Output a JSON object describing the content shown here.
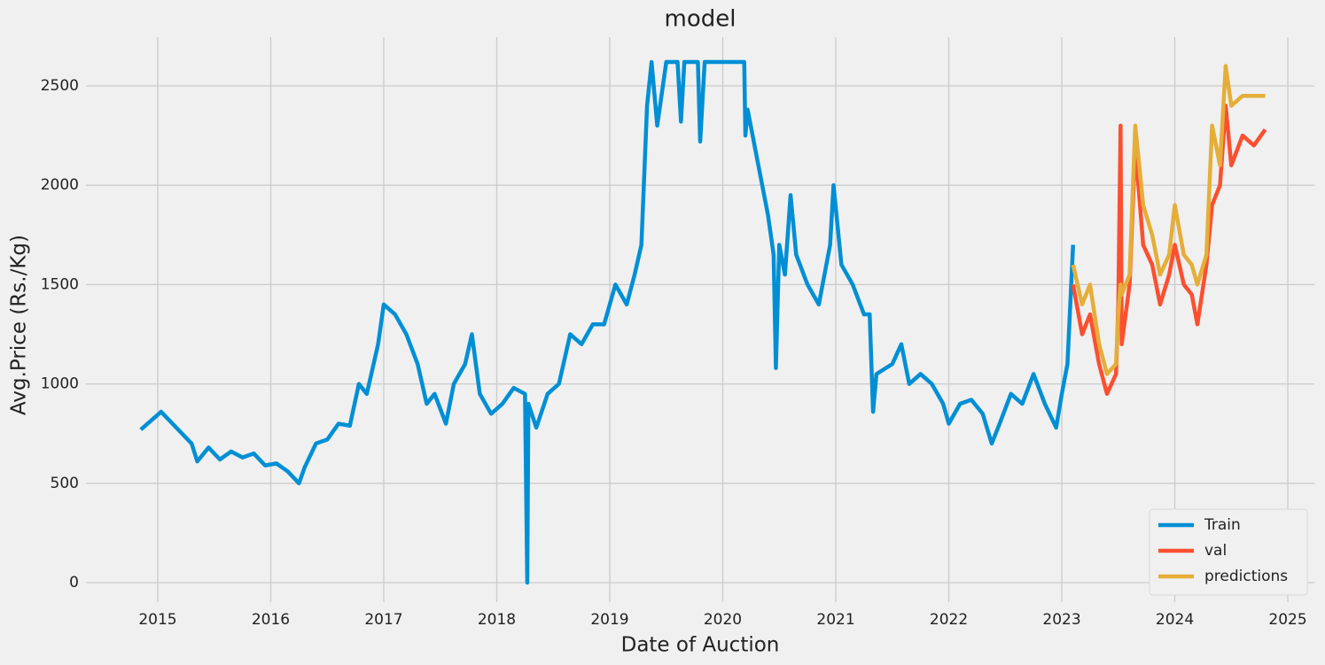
{
  "chart_data": {
    "type": "line",
    "title": "model",
    "x_label": "Date of Auction",
    "y_label": "Avg.Price (Rs./Kg)",
    "xlim": [
      2014.365,
      2025.235
    ],
    "xticks": [
      2015,
      2016,
      2017,
      2018,
      2019,
      2020,
      2021,
      2022,
      2023,
      2024,
      2025
    ],
    "ylim": [
      -98,
      2745
    ],
    "yticks": [
      0,
      500,
      1000,
      1500,
      2000,
      2500
    ],
    "grid": true,
    "legend": "lower right",
    "series": [
      {
        "name": "Train",
        "color": "#008fd5",
        "x": [
          2014.85,
          2015.03,
          2015.3,
          2015.35,
          2015.45,
          2015.55,
          2015.65,
          2015.75,
          2015.85,
          2015.95,
          2016.05,
          2016.15,
          2016.25,
          2016.3,
          2016.4,
          2016.5,
          2016.6,
          2016.7,
          2016.78,
          2016.85,
          2016.95,
          2017.0,
          2017.1,
          2017.2,
          2017.3,
          2017.38,
          2017.45,
          2017.55,
          2017.62,
          2017.72,
          2017.78,
          2017.85,
          2017.95,
          2018.05,
          2018.15,
          2018.25,
          2018.27,
          2018.28,
          2018.35,
          2018.45,
          2018.55,
          2018.65,
          2018.75,
          2018.85,
          2018.95,
          2019.05,
          2019.15,
          2019.22,
          2019.28,
          2019.33,
          2019.37,
          2019.42,
          2019.5,
          2019.6,
          2019.63,
          2019.66,
          2019.78,
          2019.8,
          2019.84,
          2019.95,
          2020.1,
          2020.19,
          2020.2,
          2020.22,
          2020.4,
          2020.45,
          2020.47,
          2020.5,
          2020.55,
          2020.6,
          2020.65,
          2020.75,
          2020.85,
          2020.95,
          2020.98,
          2021.05,
          2021.15,
          2021.25,
          2021.3,
          2021.33,
          2021.36,
          2021.5,
          2021.58,
          2021.65,
          2021.75,
          2021.85,
          2021.95,
          2022.0,
          2022.1,
          2022.2,
          2022.3,
          2022.38,
          2022.45,
          2022.55,
          2022.65,
          2022.75,
          2022.85,
          2022.95,
          2023.0,
          2023.05,
          2023.1
        ],
        "values": [
          770,
          860,
          700,
          610,
          680,
          620,
          660,
          630,
          650,
          590,
          600,
          560,
          500,
          580,
          700,
          720,
          800,
          790,
          1000,
          950,
          1200,
          1400,
          1350,
          1250,
          1100,
          900,
          950,
          800,
          1000,
          1100,
          1250,
          950,
          850,
          900,
          980,
          950,
          0,
          900,
          780,
          950,
          1000,
          1250,
          1200,
          1300,
          1300,
          1500,
          1400,
          1550,
          1700,
          2400,
          2620,
          2300,
          2620,
          2620,
          2320,
          2620,
          2620,
          2220,
          2620,
          2620,
          2620,
          2620,
          2250,
          2380,
          1850,
          1650,
          1080,
          1700,
          1550,
          1950,
          1650,
          1500,
          1400,
          1700,
          2000,
          1600,
          1500,
          1350,
          1350,
          860,
          1050,
          1100,
          1200,
          1000,
          1050,
          1000,
          900,
          800,
          900,
          920,
          850,
          700,
          800,
          950,
          900,
          1050,
          900,
          780,
          950,
          1100,
          1700
        ]
      },
      {
        "name": "val",
        "color": "#fc4f30",
        "x": [
          2023.1,
          2023.18,
          2023.25,
          2023.33,
          2023.4,
          2023.48,
          2023.5,
          2023.52,
          2023.53,
          2023.6,
          2023.65,
          2023.72,
          2023.8,
          2023.87,
          2023.95,
          2024.0,
          2024.08,
          2024.15,
          2024.2,
          2024.28,
          2024.33,
          2024.4,
          2024.45,
          2024.5,
          2024.6,
          2024.7,
          2024.8
        ],
        "values": [
          1500,
          1250,
          1350,
          1100,
          950,
          1050,
          1400,
          2300,
          1200,
          1500,
          2200,
          1700,
          1600,
          1400,
          1550,
          1700,
          1500,
          1450,
          1300,
          1600,
          1900,
          2000,
          2400,
          2100,
          2250,
          2200,
          2280
        ]
      },
      {
        "name": "predictions",
        "color": "#e5ae38",
        "x": [
          2023.1,
          2023.18,
          2023.25,
          2023.33,
          2023.4,
          2023.48,
          2023.5,
          2023.52,
          2023.53,
          2023.6,
          2023.65,
          2023.72,
          2023.8,
          2023.87,
          2023.95,
          2024.0,
          2024.08,
          2024.15,
          2024.2,
          2024.28,
          2024.33,
          2024.4,
          2024.45,
          2024.5,
          2024.6,
          2024.7,
          2024.8
        ],
        "values": [
          1600,
          1400,
          1500,
          1200,
          1050,
          1100,
          1350,
          1500,
          1450,
          1550,
          2300,
          1900,
          1750,
          1550,
          1650,
          1900,
          1650,
          1600,
          1500,
          1650,
          2300,
          2100,
          2600,
          2400,
          2450,
          2450,
          2450
        ]
      }
    ]
  }
}
